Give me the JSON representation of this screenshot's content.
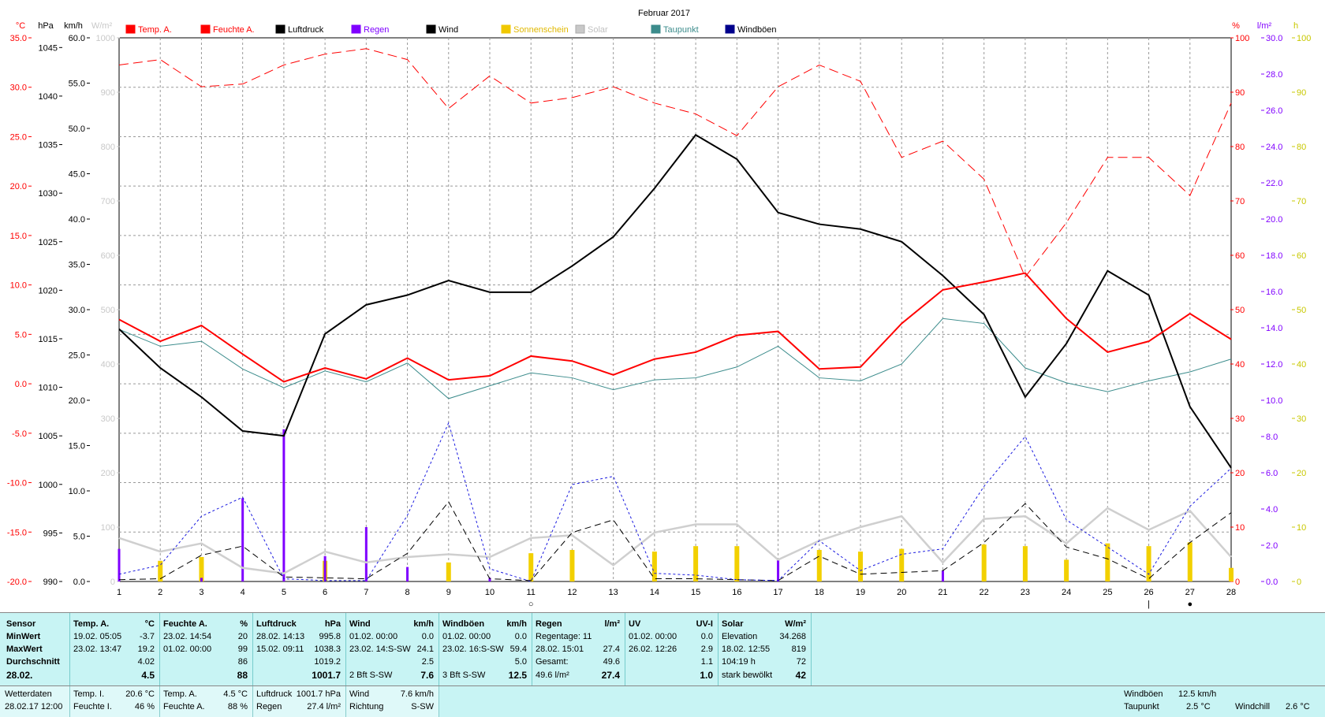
{
  "chart_data": {
    "type": "line",
    "title": "Februar 2017",
    "x": [
      1,
      2,
      3,
      4,
      5,
      6,
      7,
      8,
      9,
      10,
      11,
      12,
      13,
      14,
      15,
      16,
      17,
      18,
      19,
      20,
      21,
      22,
      23,
      24,
      25,
      26,
      27,
      28
    ],
    "axes": {
      "temp": {
        "unit": "°C",
        "range": [
          -20,
          35
        ],
        "ticks": [
          "35.0",
          "30.0",
          "25.0",
          "20.0",
          "15.0",
          "10.0",
          "5.0",
          "0.0",
          "-5.0",
          "-10.0",
          "-15.0",
          "-20.0"
        ],
        "color": "#ff0000"
      },
      "hpa": {
        "unit": "hPa",
        "range": [
          990,
          1046
        ],
        "ticks": [
          "1045",
          "1040",
          "1035",
          "1030",
          "1025",
          "1020",
          "1015",
          "1010",
          "1005",
          "1000",
          "995",
          "990"
        ],
        "color": "#000000"
      },
      "kmh": {
        "unit": "km/h",
        "range": [
          0,
          60
        ],
        "ticks": [
          "60.0",
          "55.0",
          "50.0",
          "45.0",
          "40.0",
          "35.0",
          "30.0",
          "25.0",
          "20.0",
          "15.0",
          "10.0",
          "5.0",
          "0.0"
        ],
        "color": "#000000"
      },
      "solar": {
        "unit": "W/m²",
        "range": [
          0,
          1000
        ],
        "ticks": [
          "1000",
          "900",
          "800",
          "700",
          "600",
          "500",
          "400",
          "300",
          "200",
          "100",
          "0"
        ],
        "color": "#c8c8c8"
      },
      "pct": {
        "unit": "%",
        "range": [
          0,
          100
        ],
        "ticks": [
          "100",
          "90",
          "80",
          "70",
          "60",
          "50",
          "40",
          "30",
          "20",
          "10",
          "0"
        ],
        "color": "#ff0000"
      },
      "rain": {
        "unit": "l/m²",
        "range": [
          0,
          30
        ],
        "ticks": [
          "30.0",
          "28.0",
          "26.0",
          "24.0",
          "22.0",
          "20.0",
          "18.0",
          "16.0",
          "14.0",
          "12.0",
          "10.0",
          "8.0",
          "6.0",
          "4.0",
          "2.0",
          "0.0"
        ],
        "color": "#8000ff"
      },
      "sun": {
        "unit": "h",
        "range": [
          0,
          100
        ],
        "ticks": [
          "100",
          "90",
          "80",
          "70",
          "60",
          "50",
          "40",
          "30",
          "20",
          "10",
          "0"
        ],
        "color": "#c8c800"
      }
    },
    "legend": [
      {
        "name": "Temp. A.",
        "color": "#ff0000"
      },
      {
        "name": "Feuchte A.",
        "color": "#ff0000"
      },
      {
        "name": "Luftdruck",
        "color": "#000000"
      },
      {
        "name": "Regen",
        "color": "#8000ff"
      },
      {
        "name": "Wind",
        "color": "#000000"
      },
      {
        "name": "Sonnenschein",
        "color": "#f0c800"
      },
      {
        "name": "Solar",
        "color": "#c8c8c8"
      },
      {
        "name": "Taupunkt",
        "color": "#3c8c8c"
      },
      {
        "name": "Windböen",
        "color": "#00008c"
      }
    ],
    "series": [
      {
        "name": "Temp. A.",
        "axis": "temp",
        "values": [
          6.5,
          4.3,
          5.9,
          3.0,
          0.2,
          1.6,
          0.5,
          2.6,
          0.4,
          0.8,
          2.8,
          2.3,
          0.9,
          2.5,
          3.2,
          4.9,
          5.3,
          1.5,
          1.7,
          6.1,
          9.5,
          10.3,
          11.2,
          6.6,
          3.2,
          4.3,
          7.1,
          4.5
        ]
      },
      {
        "name": "Feuchte A.",
        "axis": "pct",
        "values": [
          95,
          96,
          91,
          91.5,
          95,
          97,
          98,
          96,
          87,
          93,
          88,
          89,
          91,
          88,
          86,
          82,
          91,
          95,
          92,
          78,
          81,
          74,
          56,
          66,
          78,
          78,
          71,
          88
        ]
      },
      {
        "name": "Luftdruck",
        "axis": "hpa",
        "values": [
          1016.0,
          1012.0,
          1009.0,
          1005.5,
          1005.0,
          1015.5,
          1018.5,
          1019.5,
          1021.0,
          1019.8,
          1019.8,
          1022.5,
          1025.5,
          1030.5,
          1036.0,
          1033.5,
          1028.0,
          1026.8,
          1026.3,
          1025.0,
          1021.5,
          1017.5,
          1009.0,
          1014.5,
          1022.0,
          1019.5,
          1008.0,
          1001.7
        ]
      },
      {
        "name": "Taupunkt",
        "axis": "temp",
        "values": [
          5.5,
          3.8,
          4.3,
          1.5,
          -0.4,
          1.3,
          0.2,
          2.1,
          -1.5,
          -0.2,
          1.1,
          0.6,
          -0.6,
          0.4,
          0.6,
          1.7,
          3.8,
          0.6,
          0.3,
          2.0,
          6.6,
          6.1,
          1.6,
          0.1,
          -0.8,
          0.3,
          1.2,
          2.5
        ]
      },
      {
        "name": "Wind",
        "axis": "kmh",
        "values": [
          0.2,
          0.3,
          2.9,
          3.9,
          0.5,
          0.4,
          0.3,
          3.1,
          8.8,
          0.3,
          0.1,
          5.4,
          6.8,
          0.3,
          0.3,
          0.2,
          0.1,
          2.8,
          0.8,
          1.0,
          1.2,
          4.3,
          8.6,
          3.8,
          2.5,
          0.3,
          4.3,
          7.6
        ]
      },
      {
        "name": "Windböen",
        "axis": "kmh",
        "values": [
          0.8,
          1.8,
          7.2,
          9.3,
          0.3,
          0.1,
          0.1,
          7.3,
          17.5,
          1.4,
          0.0,
          10.7,
          11.6,
          0.9,
          0.7,
          0.2,
          0.1,
          4.5,
          1.2,
          3.0,
          3.6,
          10.5,
          16.0,
          6.8,
          3.8,
          0.8,
          8.3,
          12.5
        ]
      },
      {
        "name": "Solar",
        "axis": "solar",
        "values": [
          80,
          55,
          70,
          25,
          15,
          55,
          35,
          45,
          50,
          45,
          80,
          85,
          30,
          90,
          105,
          105,
          40,
          75,
          100,
          120,
          35,
          115,
          120,
          70,
          135,
          95,
          130,
          45
        ]
      },
      {
        "name": "Regen",
        "axis": "rain",
        "type": "bar",
        "values": [
          1.8,
          0,
          0.2,
          4.6,
          8.4,
          1.4,
          3.0,
          0.8,
          0,
          0.2,
          0,
          0,
          0,
          0,
          0,
          0,
          1.2,
          0,
          0,
          0,
          0.6,
          0,
          0,
          0,
          0,
          0,
          0,
          0
        ]
      },
      {
        "name": "Sonnenschein",
        "type": "bar",
        "axis": "sun",
        "values": [
          0,
          3.8,
          4.5,
          0,
          0,
          3.8,
          0,
          0,
          3.5,
          0,
          5.2,
          5.8,
          0,
          5.5,
          6.5,
          6.5,
          0,
          5.8,
          5.5,
          6.0,
          0,
          6.8,
          6.5,
          4.0,
          7.0,
          6.5,
          7.2,
          2.5
        ]
      }
    ],
    "markers": [
      {
        "day": 11,
        "symbol": "○"
      },
      {
        "day": 26,
        "symbol": "|"
      },
      {
        "day": 27,
        "symbol": "●"
      }
    ]
  },
  "axis_headers": {
    "temp": "°C",
    "hpa": "hPa",
    "kmh": "km/h",
    "solar": "W/m²",
    "pct": "%",
    "rain": "l/m²",
    "sun": "h"
  },
  "table": {
    "row_labels": {
      "sensor": "Sensor",
      "min": "MinWert",
      "max": "MaxWert",
      "avg": "Durchschnitt",
      "date": "28.02."
    },
    "temp": {
      "h1": "Temp. A.",
      "h2": "°C",
      "min_ts": "19.02.  05:05",
      "min_v": "-3.7",
      "max_ts": "23.02.  13:47",
      "max_v": "19.2",
      "avg": "4.02",
      "cur": "4.5"
    },
    "feuchte": {
      "h1": "Feuchte A.",
      "h2": "%",
      "min_ts": "23.02.  14:54",
      "min_v": "20",
      "max_ts": "01.02.  00:00",
      "max_v": "99",
      "avg": "86",
      "cur": "88"
    },
    "luft": {
      "h1": "Luftdruck",
      "h2": "hPa",
      "min_ts": "28.02.  14:13",
      "min_v": "995.8",
      "max_ts": "15.02.  09:11",
      "max_v": "1038.3",
      "avg": "1019.2",
      "cur": "1001.7"
    },
    "wind": {
      "h1": "Wind",
      "h2": "km/h",
      "min_ts": "01.02.  00:00",
      "min_v": "0.0",
      "max_ts": "23.02.  14:S-SW",
      "max_v": "24.1",
      "avg": "2.5",
      "cur_dir": "2 Bft S-SW",
      "cur": "7.6"
    },
    "boeen": {
      "h1": "Windböen",
      "h2": "km/h",
      "min_ts": "01.02.  00:00",
      "min_v": "0.0",
      "max_ts": "23.02.  16:S-SW",
      "max_v": "59.4",
      "avg": "5.0",
      "cur_dir": "3 Bft S-SW",
      "cur": "12.5"
    },
    "regen": {
      "h1": "Regen",
      "h2": "l/m²",
      "r1a": "Regentage: 11",
      "r1b": "",
      "r2a": "28.02.  15:01",
      "r2b": "27.4",
      "r3a": "Gesamt:",
      "r3b": "49.6",
      "r4a": "49.6 l/m²",
      "r4b": "27.4"
    },
    "uv": {
      "h1": "UV",
      "h2": "UV-I",
      "min_ts": "01.02.  00:00",
      "min_v": "0.0",
      "max_ts": "26.02.  12:26",
      "max_v": "2.9",
      "avg": "1.1",
      "cur": "1.0"
    },
    "solar": {
      "h1": "Solar",
      "h2": "W/m²",
      "r1a": "Elevation",
      "r1b": "34.268",
      "r2a": "18.02.  12:55",
      "r2b": "819",
      "r3a": "104:19 h",
      "r3b": "72",
      "r4a": "stark bewölkt",
      "r4b": "42"
    }
  },
  "footer": {
    "wetter_label": "Wetterdaten",
    "wetter_date": "28.02.17 12:00",
    "temp_i_label": "Temp. I.",
    "temp_i": "20.6 °C",
    "feuchte_i_label": "Feuchte I.",
    "feuchte_i": "46 %",
    "temp_a_label": "Temp. A.",
    "temp_a": "4.5 °C",
    "feuchte_a_label": "Feuchte A.",
    "feuchte_a": "88 %",
    "luft_label": "Luftdruck",
    "luft": "1001.7 hPa",
    "regen_label": "Regen",
    "regen": "27.4 l/m²",
    "wind_label": "Wind",
    "wind": "7.6 km/h",
    "richtung_label": "Richtung",
    "richtung": "S-SW",
    "boeen_label": "Windböen",
    "boeen": "12.5 km/h",
    "taupunkt_label": "Taupunkt",
    "taupunkt": "2.5 °C",
    "windchill_label": "Windchill",
    "windchill": "2.6 °C"
  }
}
